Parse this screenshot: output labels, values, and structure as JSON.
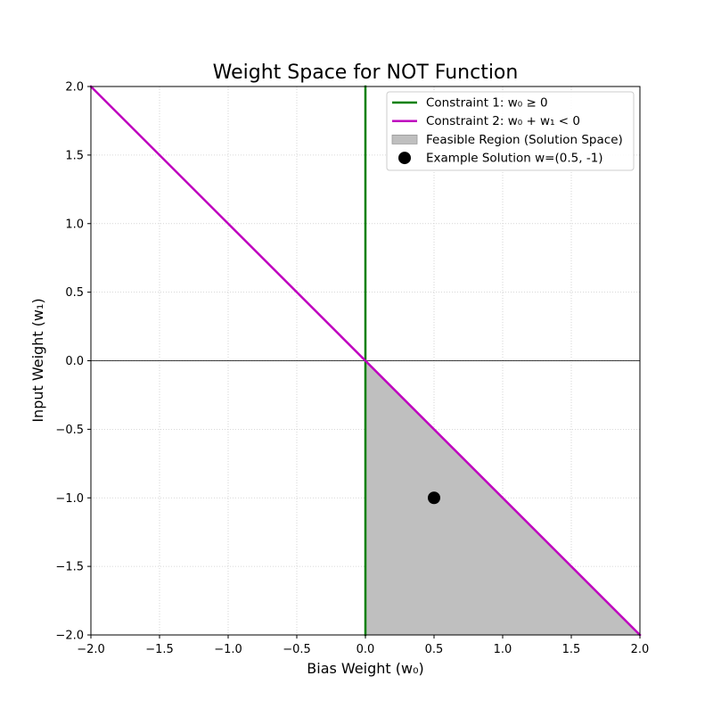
{
  "chart_data": {
    "type": "line",
    "title": "Weight Space for NOT Function",
    "xlabel": "Bias Weight (w₀)",
    "ylabel": "Input Weight (w₁)",
    "xlim": [
      -2.0,
      2.0
    ],
    "ylim": [
      -2.0,
      2.0
    ],
    "xticks": [
      -2.0,
      -1.5,
      -1.0,
      -0.5,
      0.0,
      0.5,
      1.0,
      1.5,
      2.0
    ],
    "yticks": [
      -2.0,
      -1.5,
      -1.0,
      -0.5,
      0.0,
      0.5,
      1.0,
      1.5,
      2.0
    ],
    "grid": true,
    "legend_position": "upper right",
    "series": [
      {
        "name": "Constraint 1: w₀ ≥ 0",
        "kind": "line",
        "color": "#008000",
        "x": [
          0,
          0
        ],
        "y": [
          -2,
          2
        ]
      },
      {
        "name": "Constraint 2: w₀ + w₁ < 0",
        "kind": "line",
        "color": "#bf00bf",
        "x": [
          -2,
          2
        ],
        "y": [
          2,
          -2
        ]
      },
      {
        "name": "Feasible Region (Solution Space)",
        "kind": "area",
        "color": "#bfbfbf",
        "x": [
          0,
          2,
          0
        ],
        "y": [
          0,
          -2,
          -2
        ]
      },
      {
        "name": "Example Solution w=(0.5, -1)",
        "kind": "point",
        "color": "#000000",
        "x": [
          0.5
        ],
        "y": [
          -1
        ]
      }
    ],
    "reference_lines": [
      {
        "axis": "x",
        "value": 0,
        "color": "#000000"
      },
      {
        "axis": "y",
        "value": 0,
        "color": "#000000"
      }
    ]
  }
}
